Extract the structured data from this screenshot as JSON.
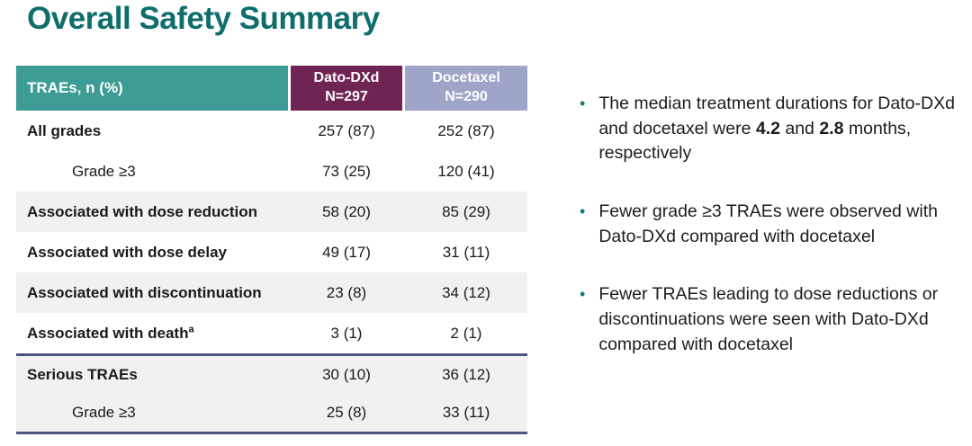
{
  "title": "Overall Safety Summary",
  "table": {
    "header": {
      "col_label": "TRAEs, n (%)",
      "col_dato_line1": "Dato-DXd",
      "col_dato_line2": "N=297",
      "col_docetaxel_line1": "Docetaxel",
      "col_docetaxel_line2": "N=290"
    },
    "rows": [
      {
        "label": "All grades",
        "dato": "257 (87)",
        "docetaxel": "252 (87)"
      },
      {
        "label": "Grade ≥3",
        "dato": "73 (25)",
        "docetaxel": "120 (41)"
      },
      {
        "label": "Associated with dose reduction",
        "dato": "58 (20)",
        "docetaxel": "85 (29)"
      },
      {
        "label": "Associated with dose delay",
        "dato": "49 (17)",
        "docetaxel": "31 (11)"
      },
      {
        "label": "Associated with discontinuation",
        "dato": "23 (8)",
        "docetaxel": "34 (12)"
      },
      {
        "label": "Associated with death",
        "sup": "a",
        "dato": "3 (1)",
        "docetaxel": "2 (1)"
      },
      {
        "label": "Serious TRAEs",
        "dato": "30 (10)",
        "docetaxel": "36 (12)"
      },
      {
        "label": "Grade ≥3",
        "dato": "25 (8)",
        "docetaxel": "33 (11)"
      }
    ]
  },
  "bullets": {
    "b1_pre": "The median treatment durations for Dato-DXd and docetaxel were ",
    "b1_bold1": "4.2",
    "b1_mid": " and ",
    "b1_bold2": "2.8",
    "b1_post": " months, respectively",
    "b2": "Fewer grade ≥3 TRAEs were observed with Dato-DXd compared with docetaxel",
    "b3": "Fewer TRAEs leading to dose reductions or discontinuations were seen with Dato-DXd compared with docetaxel",
    "dot_glyph": "•"
  },
  "colors": {
    "title_teal": "#0f6e6c",
    "header_teal": "#3d9c95",
    "header_maroon": "#6f2453",
    "header_lavender": "#9fa5c9",
    "row_shaded_gray": "#f1f1f1",
    "divider_navy": "#4a5680",
    "bullet_dot_teal": "#1d7874"
  }
}
